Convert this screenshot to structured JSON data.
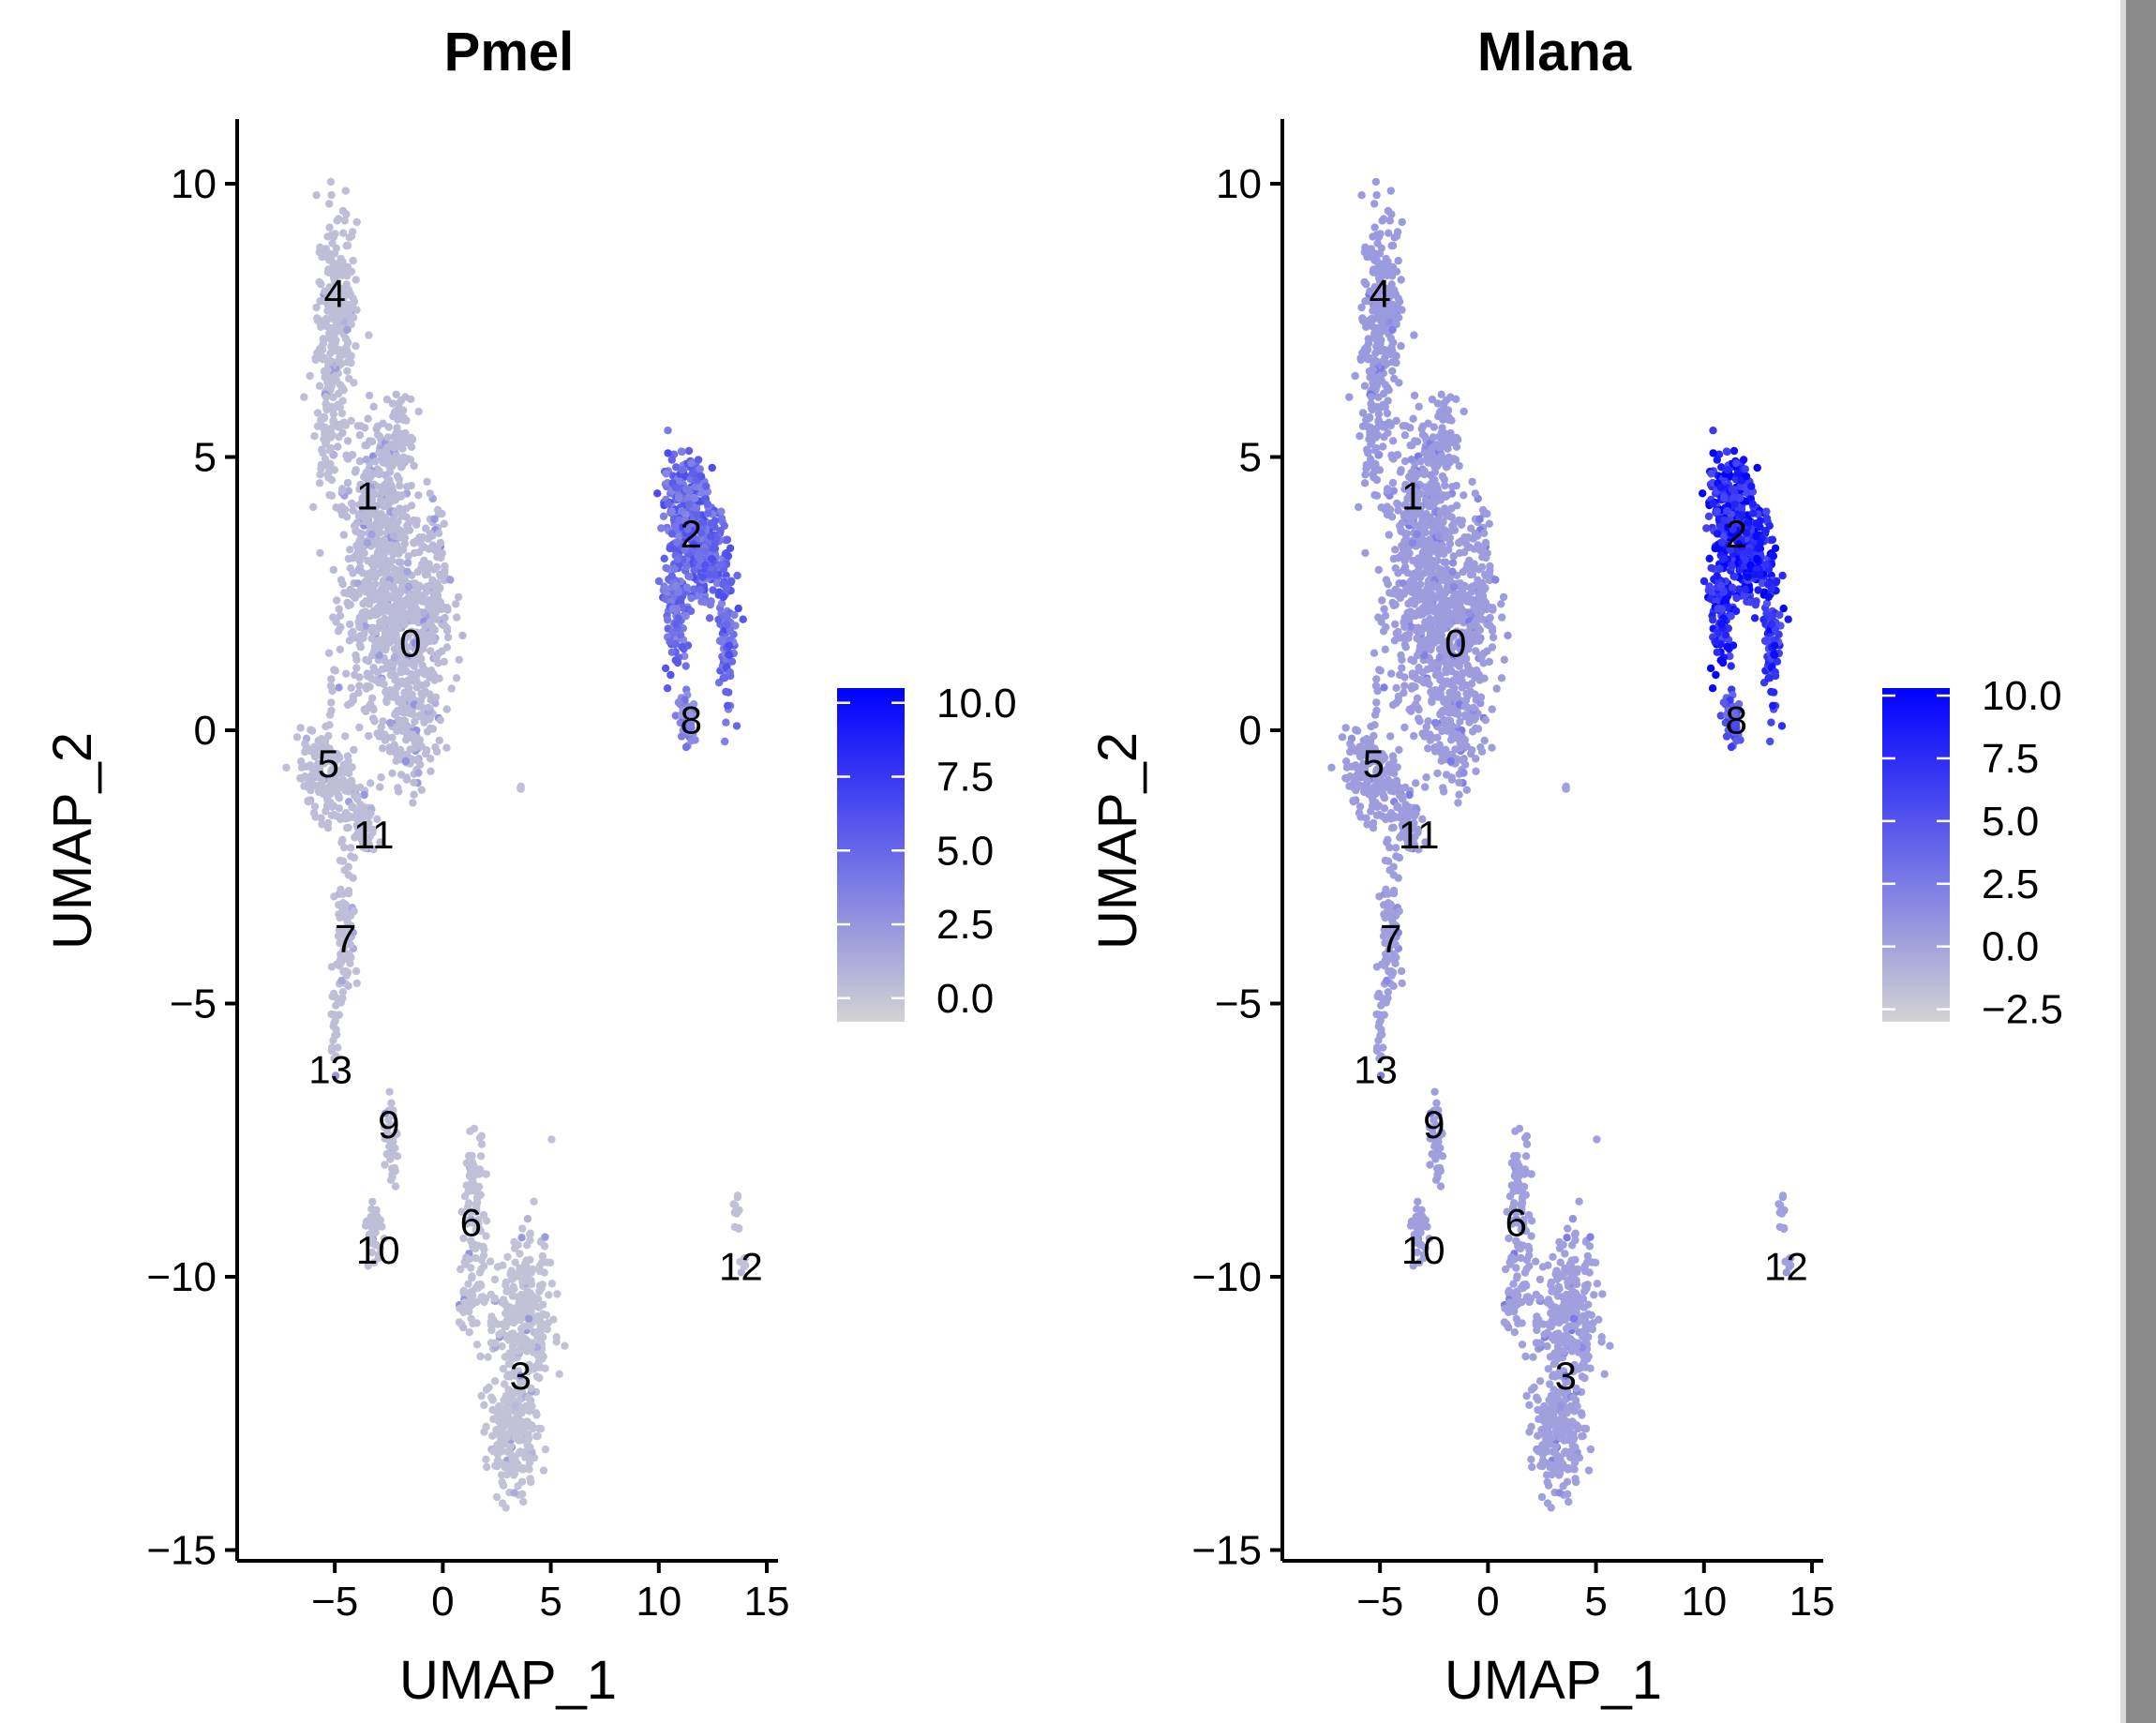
{
  "colors": {
    "low": "#d3d3d3",
    "high": "#0000ff",
    "text": "#000000",
    "axis": "#000000"
  },
  "chart_data": [
    {
      "type": "scatter",
      "title": "Pmel",
      "xlabel": "UMAP_1",
      "ylabel": "UMAP_2",
      "xlim": [
        -9,
        15
      ],
      "ylim": [
        -15,
        11
      ],
      "xticks": [
        "−5",
        "0",
        "5",
        "10",
        "15"
      ],
      "xtick_values": [
        -5,
        0,
        5,
        10,
        15
      ],
      "yticks": [
        "−15",
        "−10",
        "−5",
        "0",
        "5",
        "10"
      ],
      "ytick_values": [
        -15,
        -10,
        -5,
        0,
        5,
        10
      ],
      "legend": {
        "position": "right",
        "tick_labels": [
          "10.0",
          "7.5",
          "5.0",
          "2.5",
          "0.0"
        ],
        "tick_values": [
          10,
          7.5,
          5,
          2.5,
          0
        ],
        "range": [
          -0.8,
          10.5
        ]
      },
      "cluster_labels": [
        {
          "label": "4",
          "x": -5,
          "y": 8
        },
        {
          "label": "1",
          "x": -3.5,
          "y": 4.3
        },
        {
          "label": "2",
          "x": 11.5,
          "y": 3.6
        },
        {
          "label": "0",
          "x": -1.5,
          "y": 1.6
        },
        {
          "label": "8",
          "x": 11.5,
          "y": 0.2
        },
        {
          "label": "5",
          "x": -5.3,
          "y": -0.6
        },
        {
          "label": "11",
          "x": -3.2,
          "y": -1.9
        },
        {
          "label": "7",
          "x": -4.5,
          "y": -3.8
        },
        {
          "label": "13",
          "x": -5.2,
          "y": -6.2
        },
        {
          "label": "9",
          "x": -2.5,
          "y": -7.2
        },
        {
          "label": "6",
          "x": 1.3,
          "y": -9
        },
        {
          "label": "10",
          "x": -3,
          "y": -9.5
        },
        {
          "label": "12",
          "x": 13.8,
          "y": -9.8
        },
        {
          "label": "3",
          "x": 3.6,
          "y": -11.8
        }
      ]
    },
    {
      "type": "scatter",
      "title": "Mlana",
      "xlabel": "UMAP_1",
      "ylabel": "UMAP_2",
      "xlim": [
        -9,
        15
      ],
      "ylim": [
        -15,
        11
      ],
      "xticks": [
        "−5",
        "0",
        "5",
        "10",
        "15"
      ],
      "xtick_values": [
        -5,
        0,
        5,
        10,
        15
      ],
      "yticks": [
        "−15",
        "−10",
        "−5",
        "0",
        "5",
        "10"
      ],
      "ytick_values": [
        -15,
        -10,
        -5,
        0,
        5,
        10
      ],
      "legend": {
        "position": "right",
        "tick_labels": [
          "10.0",
          "7.5",
          "5.0",
          "2.5",
          "0.0",
          "−2.5"
        ],
        "tick_values": [
          10,
          7.5,
          5,
          2.5,
          0,
          -2.5
        ],
        "range": [
          -3,
          10.3
        ]
      },
      "cluster_labels": [
        {
          "label": "4",
          "x": -5,
          "y": 8
        },
        {
          "label": "1",
          "x": -3.5,
          "y": 4.3
        },
        {
          "label": "2",
          "x": 11.5,
          "y": 3.6
        },
        {
          "label": "0",
          "x": -1.5,
          "y": 1.6
        },
        {
          "label": "8",
          "x": 11.5,
          "y": 0.2
        },
        {
          "label": "5",
          "x": -5.3,
          "y": -0.6
        },
        {
          "label": "11",
          "x": -3.2,
          "y": -1.9
        },
        {
          "label": "7",
          "x": -4.5,
          "y": -3.8
        },
        {
          "label": "13",
          "x": -5.2,
          "y": -6.2
        },
        {
          "label": "9",
          "x": -2.5,
          "y": -7.2
        },
        {
          "label": "6",
          "x": 1.3,
          "y": -9
        },
        {
          "label": "10",
          "x": -3,
          "y": -9.5
        },
        {
          "label": "12",
          "x": 13.8,
          "y": -9.8
        },
        {
          "label": "3",
          "x": 3.6,
          "y": -11.8
        }
      ]
    }
  ]
}
